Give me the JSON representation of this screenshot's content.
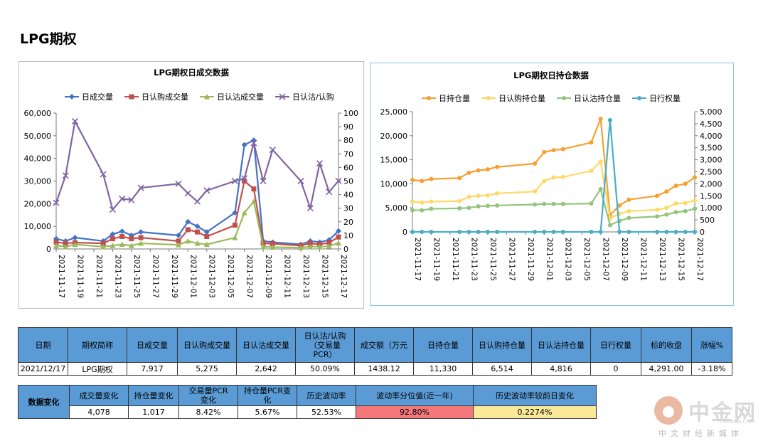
{
  "page": {
    "title": "LPG期权"
  },
  "colors": {
    "blue": "#4472c4",
    "red": "#c0504d",
    "green": "#9bbb59",
    "purple": "#8064a2",
    "orange": "#f5a030",
    "yellow": "#ffd966",
    "lightgreen": "#92c47d",
    "teal": "#4bacc6",
    "header_blue": "#5b9bd5",
    "pink": "#f4787a",
    "pale_yellow": "#fbe99a"
  },
  "chart_data": [
    {
      "type": "line",
      "title": "LPG期权日成交数据",
      "x_tick_labels": [
        "2021-11-17",
        "2021-11-19",
        "2021-11-21",
        "2021-11-23",
        "2021-11-25",
        "2021-11-27",
        "2021-11-29",
        "2021-12-01",
        "2021-12-03",
        "2021-12-05",
        "2021-12-07",
        "2021-12-09",
        "2021-12-11",
        "2021-12-13",
        "2021-12-15",
        "2021-12-17"
      ],
      "y_left": {
        "min": 0,
        "max": 60000,
        "ticks": [
          "0",
          "10,000",
          "20,000",
          "30,000",
          "40,000",
          "50,000",
          "60,000"
        ]
      },
      "y_right": {
        "min": 0,
        "max": 100,
        "ticks": [
          "0",
          "10",
          "20",
          "30",
          "40",
          "50",
          "60",
          "70",
          "80",
          "90",
          "100"
        ]
      },
      "legend_position": "top",
      "series": [
        {
          "name": "日成交量",
          "axis": "left",
          "color": "blue",
          "x": [
            "2021-11-17",
            "2021-11-18",
            "2021-11-19",
            "2021-11-22",
            "2021-11-23",
            "2021-11-24",
            "2021-11-25",
            "2021-11-26",
            "2021-11-30",
            "2021-12-01",
            "2021-12-02",
            "2021-12-03",
            "2021-12-06",
            "2021-12-07",
            "2021-12-08",
            "2021-12-09",
            "2021-12-10",
            "2021-12-13",
            "2021-12-14",
            "2021-12-15",
            "2021-12-16",
            "2021-12-17"
          ],
          "y": [
            4500,
            3500,
            5000,
            3500,
            6500,
            7800,
            6000,
            7500,
            6000,
            12000,
            10000,
            7500,
            16000,
            46000,
            48000,
            3500,
            3000,
            2000,
            3500,
            3000,
            4000,
            7917
          ]
        },
        {
          "name": "日认购成交量",
          "axis": "left",
          "color": "red",
          "x": [
            "2021-11-17",
            "2021-11-18",
            "2021-11-19",
            "2021-11-22",
            "2021-11-23",
            "2021-11-24",
            "2021-11-25",
            "2021-11-26",
            "2021-11-30",
            "2021-12-01",
            "2021-12-02",
            "2021-12-03",
            "2021-12-06",
            "2021-12-07",
            "2021-12-08",
            "2021-12-09",
            "2021-12-10",
            "2021-12-13",
            "2021-12-14",
            "2021-12-15",
            "2021-12-16",
            "2021-12-17"
          ],
          "y": [
            3000,
            2500,
            2800,
            2500,
            4500,
            5500,
            4500,
            5000,
            3500,
            8500,
            7500,
            5500,
            10500,
            30000,
            26500,
            2500,
            2300,
            1500,
            2500,
            2000,
            2800,
            5275
          ]
        },
        {
          "name": "日认沽成交量",
          "axis": "left",
          "color": "green",
          "x": [
            "2021-11-17",
            "2021-11-18",
            "2021-11-19",
            "2021-11-22",
            "2021-11-23",
            "2021-11-24",
            "2021-11-25",
            "2021-11-26",
            "2021-11-30",
            "2021-12-01",
            "2021-12-02",
            "2021-12-03",
            "2021-12-06",
            "2021-12-07",
            "2021-12-08",
            "2021-12-09",
            "2021-12-10",
            "2021-12-13",
            "2021-12-14",
            "2021-12-15",
            "2021-12-16",
            "2021-12-17"
          ],
          "y": [
            1500,
            1000,
            2000,
            1000,
            1500,
            2000,
            1500,
            2500,
            1800,
            3500,
            2500,
            2000,
            5000,
            16000,
            21000,
            1000,
            800,
            600,
            1000,
            1000,
            1200,
            2642
          ]
        },
        {
          "name": "日认沽/认购",
          "axis": "right",
          "color": "purple",
          "x": [
            "2021-11-17",
            "2021-11-18",
            "2021-11-19",
            "2021-11-22",
            "2021-11-23",
            "2021-11-24",
            "2021-11-25",
            "2021-11-26",
            "2021-11-30",
            "2021-12-01",
            "2021-12-02",
            "2021-12-03",
            "2021-12-06",
            "2021-12-07",
            "2021-12-08",
            "2021-12-09",
            "2021-12-10",
            "2021-12-13",
            "2021-12-14",
            "2021-12-15",
            "2021-12-16",
            "2021-12-17"
          ],
          "y": [
            34,
            54,
            94,
            55,
            29,
            37,
            36,
            45,
            48,
            41,
            35,
            43,
            50,
            52,
            78,
            50,
            73,
            50,
            30,
            63,
            42,
            50.09
          ]
        }
      ]
    },
    {
      "type": "line",
      "title": "LPG期权日持仓数据",
      "x_tick_labels": [
        "2021-11-17",
        "2021-11-19",
        "2021-11-21",
        "2021-11-23",
        "2021-11-25",
        "2021-11-27",
        "2021-11-29",
        "2021-12-01",
        "2021-12-03",
        "2021-12-05",
        "2021-12-07",
        "2021-12-09",
        "2021-12-11",
        "2021-12-13",
        "2021-12-15",
        "2021-12-17"
      ],
      "y_left": {
        "min": 0,
        "max": 25000,
        "ticks": [
          "0",
          "5,000",
          "10,000",
          "15,000",
          "20,000",
          "25,000"
        ]
      },
      "y_right": {
        "min": 0,
        "max": 5000,
        "ticks": [
          "0",
          "500",
          "1,000",
          "1,500",
          "2,000",
          "2,500",
          "3,000",
          "3,500",
          "4,000",
          "4,500",
          "5,000"
        ]
      },
      "legend_position": "top",
      "series": [
        {
          "name": "日持仓量",
          "axis": "left",
          "color": "orange",
          "x": [
            "2021-11-17",
            "2021-11-18",
            "2021-11-19",
            "2021-11-22",
            "2021-11-23",
            "2021-11-24",
            "2021-11-25",
            "2021-11-26",
            "2021-11-30",
            "2021-12-01",
            "2021-12-02",
            "2021-12-03",
            "2021-12-06",
            "2021-12-07",
            "2021-12-08",
            "2021-12-09",
            "2021-12-10",
            "2021-12-13",
            "2021-12-14",
            "2021-12-15",
            "2021-12-16",
            "2021-12-17"
          ],
          "y": [
            10800,
            10600,
            11000,
            11200,
            12300,
            12800,
            13000,
            13500,
            14200,
            16600,
            17000,
            17200,
            18600,
            23500,
            3500,
            5500,
            6700,
            7500,
            8400,
            9600,
            10000,
            11330
          ]
        },
        {
          "name": "日认购持仓量",
          "axis": "left",
          "color": "yellow",
          "x": [
            "2021-11-17",
            "2021-11-18",
            "2021-11-19",
            "2021-11-22",
            "2021-11-23",
            "2021-11-24",
            "2021-11-25",
            "2021-11-26",
            "2021-11-30",
            "2021-12-01",
            "2021-12-02",
            "2021-12-03",
            "2021-12-06",
            "2021-12-07",
            "2021-12-08",
            "2021-12-09",
            "2021-12-10",
            "2021-12-13",
            "2021-12-14",
            "2021-12-15",
            "2021-12-16",
            "2021-12-17"
          ],
          "y": [
            6300,
            6100,
            6300,
            6400,
            7300,
            7500,
            7600,
            8000,
            8400,
            10600,
            11300,
            11400,
            12700,
            14600,
            2800,
            3800,
            4300,
            4600,
            5000,
            5900,
            6000,
            6514
          ]
        },
        {
          "name": "日认沽持仓量",
          "axis": "left",
          "color": "lightgreen",
          "x": [
            "2021-11-17",
            "2021-11-18",
            "2021-11-19",
            "2021-11-22",
            "2021-11-23",
            "2021-11-24",
            "2021-11-25",
            "2021-11-26",
            "2021-11-30",
            "2021-12-01",
            "2021-12-02",
            "2021-12-03",
            "2021-12-06",
            "2021-12-07",
            "2021-12-08",
            "2021-12-09",
            "2021-12-10",
            "2021-12-13",
            "2021-12-14",
            "2021-12-15",
            "2021-12-16",
            "2021-12-17"
          ],
          "y": [
            4500,
            4500,
            4800,
            4900,
            5000,
            5300,
            5400,
            5500,
            5700,
            5800,
            5800,
            5800,
            5900,
            8900,
            1400,
            2300,
            2900,
            3200,
            3600,
            4100,
            4300,
            4816
          ]
        },
        {
          "name": "日行权量",
          "axis": "right",
          "color": "teal",
          "x": [
            "2021-11-17",
            "2021-11-18",
            "2021-11-19",
            "2021-11-22",
            "2021-11-23",
            "2021-11-24",
            "2021-11-25",
            "2021-11-26",
            "2021-11-30",
            "2021-12-01",
            "2021-12-02",
            "2021-12-03",
            "2021-12-06",
            "2021-12-07",
            "2021-12-08",
            "2021-12-09",
            "2021-12-10",
            "2021-12-13",
            "2021-12-14",
            "2021-12-15",
            "2021-12-16",
            "2021-12-17"
          ],
          "y": [
            0,
            0,
            0,
            0,
            0,
            0,
            0,
            0,
            0,
            0,
            0,
            0,
            0,
            0,
            4650,
            0,
            0,
            0,
            0,
            0,
            0,
            0
          ]
        }
      ]
    }
  ],
  "table1": {
    "headers": [
      "日期",
      "期权简称",
      "日成交量",
      "日认购成交量",
      "日认沽成交量",
      "日认沽/认购\n（交易量\nPCR）",
      "成交额（万元",
      "日持仓量",
      "日认购持仓量",
      "日认沽持仓量",
      "日行权量",
      "标的收盘",
      "涨幅%"
    ],
    "row": [
      "2021/12/17",
      "LPG期权",
      "7,917",
      "5,275",
      "2,642",
      "50.09%",
      "1438.12",
      "11,330",
      "6,514",
      "4,816",
      "0",
      "4,291.00",
      "-3.18%"
    ]
  },
  "table2": {
    "row_header": "数据变化",
    "headers": [
      "成交量变化",
      "持仓量变化",
      "交易量PCR\n变化",
      "持仓量PCR变\n化",
      "历史波动率",
      "波动率分位值(近一年)",
      "历史波动率较前日变化"
    ],
    "row": [
      "4,078",
      "1,017",
      "8.42%",
      "5.67%",
      "52.53%",
      "92.80%",
      "0.2274%"
    ]
  },
  "watermark": {
    "name": "中金网",
    "url": "CNGOLD.COM",
    "tagline": "中文财经新媒体"
  }
}
